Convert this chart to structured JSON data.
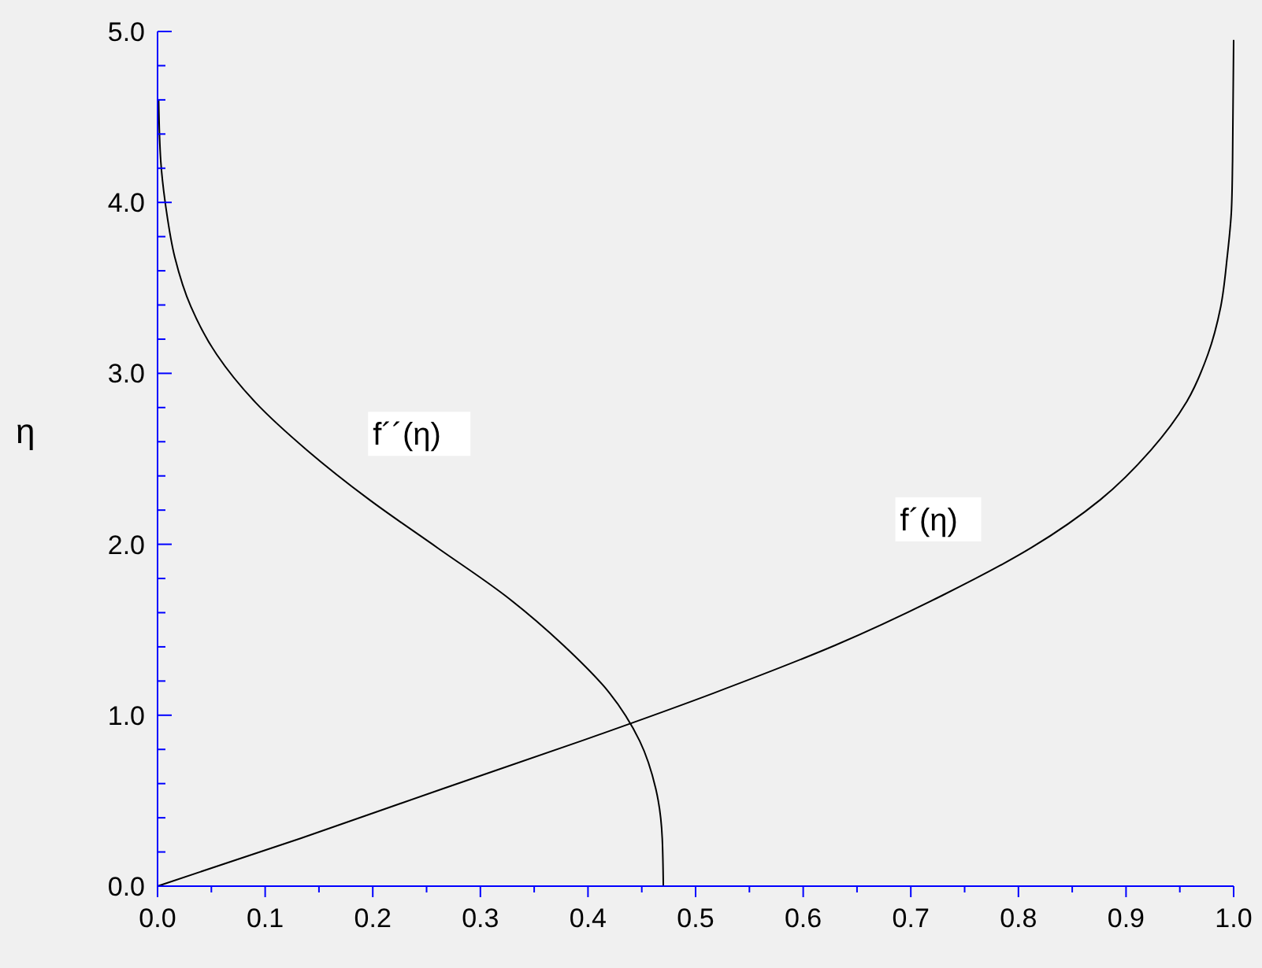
{
  "chart_data": {
    "type": "line",
    "ylabel": "η",
    "series": [
      {
        "color": "#000000",
        "x": [
          0,
          0.133,
          0.265,
          0.394,
          0.517,
          0.63,
          0.729,
          0.812,
          0.876,
          0.923,
          0.956,
          0.976,
          0.988,
          0.994,
          0.998,
          0.999,
          1.0
        ],
        "values": [
          0,
          0.28,
          0.57,
          0.85,
          1.13,
          1.41,
          1.7,
          1.98,
          2.26,
          2.55,
          2.83,
          3.11,
          3.39,
          3.68,
          3.96,
          4.24,
          4.95
        ]
      },
      {
        "color": "#000000",
        "x": [
          0.47,
          0.469,
          0.463,
          0.448,
          0.42,
          0.377,
          0.323,
          0.26,
          0.197,
          0.139,
          0.091,
          0.055,
          0.031,
          0.016,
          0.008,
          0.003,
          0.001
        ],
        "values": [
          0,
          0.28,
          0.57,
          0.85,
          1.13,
          1.41,
          1.7,
          1.98,
          2.26,
          2.55,
          2.83,
          3.11,
          3.39,
          3.68,
          3.96,
          4.24,
          4.6
        ]
      }
    ],
    "annotations": [
      "f´´(η)",
      "f´(η)"
    ],
    "xlim": [
      0,
      1
    ],
    "ylim": [
      0,
      5
    ],
    "xticks": [
      {
        "value": 0,
        "label": "0.0"
      },
      {
        "value": 0.05,
        "label": null
      },
      {
        "value": 0.1,
        "label": "0.1"
      },
      {
        "value": 0.15,
        "label": null
      },
      {
        "value": 0.2,
        "label": "0.2"
      },
      {
        "value": 0.25,
        "label": null
      },
      {
        "value": 0.3,
        "label": "0.3"
      },
      {
        "value": 0.35,
        "label": null
      },
      {
        "value": 0.4,
        "label": "0.4"
      },
      {
        "value": 0.45,
        "label": null
      },
      {
        "value": 0.5,
        "label": "0.5"
      },
      {
        "value": 0.55,
        "label": null
      },
      {
        "value": 0.6,
        "label": "0.6"
      },
      {
        "value": 0.65,
        "label": null
      },
      {
        "value": 0.7,
        "label": "0.7"
      },
      {
        "value": 0.75,
        "label": null
      },
      {
        "value": 0.8,
        "label": "0.8"
      },
      {
        "value": 0.85,
        "label": null
      },
      {
        "value": 0.9,
        "label": "0.9"
      },
      {
        "value": 0.95,
        "label": null
      },
      {
        "value": 1,
        "label": "1.0"
      }
    ],
    "yticks": [
      {
        "value": 0,
        "label": "0.0"
      },
      {
        "value": 0.2,
        "label": null
      },
      {
        "value": 0.4,
        "label": null
      },
      {
        "value": 0.6,
        "label": null
      },
      {
        "value": 0.8,
        "label": null
      },
      {
        "value": 1,
        "label": "1.0"
      },
      {
        "value": 1.2,
        "label": null
      },
      {
        "value": 1.4,
        "label": null
      },
      {
        "value": 1.6,
        "label": null
      },
      {
        "value": 1.8,
        "label": null
      },
      {
        "value": 2,
        "label": "2.0"
      },
      {
        "value": 2.2,
        "label": null
      },
      {
        "value": 2.4,
        "label": null
      },
      {
        "value": 2.6,
        "label": null
      },
      {
        "value": 2.8,
        "label": null
      },
      {
        "value": 3,
        "label": "3.0"
      },
      {
        "value": 3.2,
        "label": null
      },
      {
        "value": 3.4,
        "label": null
      },
      {
        "value": 3.6,
        "label": null
      },
      {
        "value": 3.8,
        "label": null
      },
      {
        "value": 4,
        "label": "4.0"
      },
      {
        "value": 4.2,
        "label": null
      },
      {
        "value": 4.4,
        "label": null
      },
      {
        "value": 4.6,
        "label": null
      },
      {
        "value": 4.8,
        "label": null
      },
      {
        "value": 5,
        "label": "5.0"
      }
    ],
    "grid": false
  }
}
